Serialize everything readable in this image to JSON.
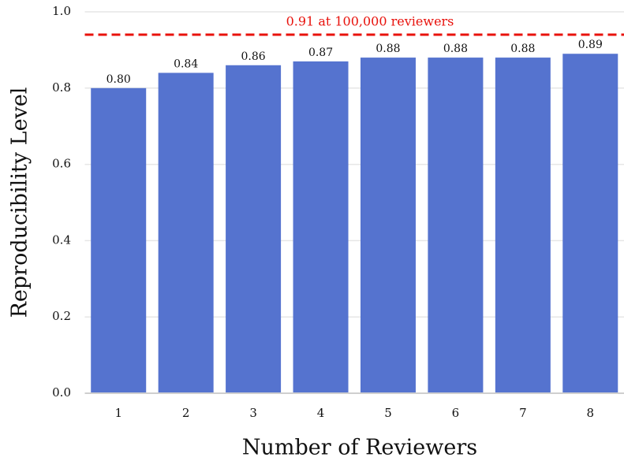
{
  "chart_data": {
    "type": "bar",
    "x_label": "Number of Reviewers",
    "y_label": "Reproducibility Level",
    "categories": [
      "1",
      "2",
      "3",
      "4",
      "5",
      "6",
      "7",
      "8"
    ],
    "values": [
      0.8,
      0.84,
      0.86,
      0.87,
      0.88,
      0.88,
      0.88,
      0.89
    ],
    "value_labels": [
      "0.80",
      "0.84",
      "0.86",
      "0.87",
      "0.88",
      "0.88",
      "0.88",
      "0.89"
    ],
    "color": "#5573cf",
    "ylim": [
      0,
      1.0
    ],
    "yticks": [
      {
        "value": 0,
        "label": "0.0"
      },
      0.2,
      0.4,
      0.6,
      0.8,
      {
        "value": 1.0,
        "label": "1.0"
      }
    ],
    "grid": true,
    "reference_line": 0.94,
    "reference_color": "#e8120c",
    "annotation": "0.91 at 100,000 reviewers"
  }
}
